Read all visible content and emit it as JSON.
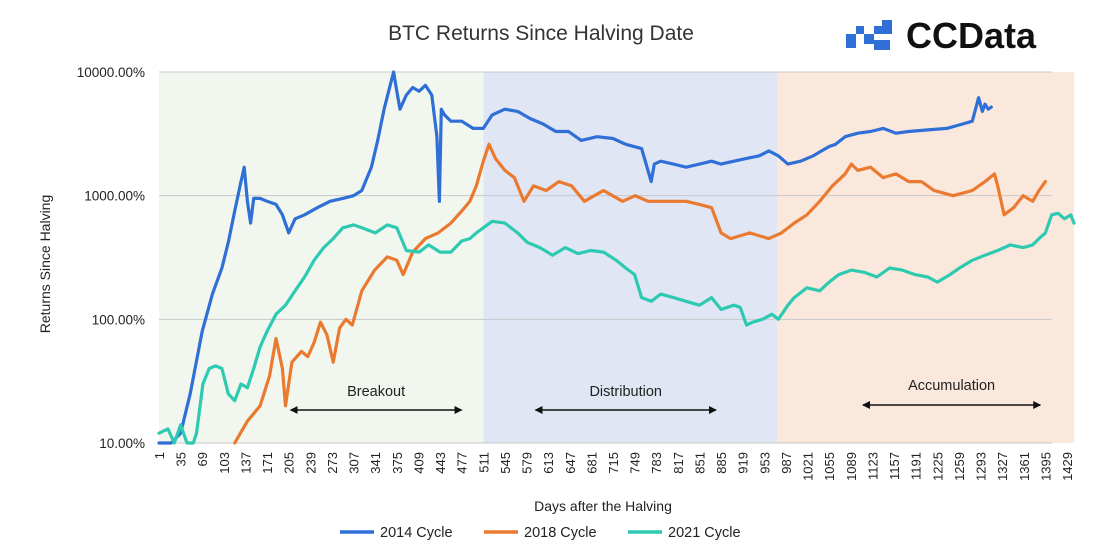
{
  "chart_data": {
    "type": "line",
    "title": "BTC Returns Since Halving Date",
    "xlabel": "Days after the Halving",
    "ylabel": "Returns Since Halving",
    "y_scale": "log",
    "ylim": [
      10,
      10000
    ],
    "xlim": [
      1,
      1440
    ],
    "yticks": [
      10,
      100,
      1000,
      10000
    ],
    "ytick_labels": [
      "10.00%",
      "100.00%",
      "1000.00%",
      "10000.00%"
    ],
    "xticks": [
      1,
      35,
      69,
      103,
      137,
      171,
      205,
      239,
      273,
      307,
      341,
      375,
      409,
      443,
      477,
      511,
      545,
      579,
      613,
      647,
      681,
      715,
      749,
      783,
      817,
      851,
      885,
      919,
      953,
      987,
      1021,
      1055,
      1089,
      1123,
      1157,
      1191,
      1225,
      1259,
      1293,
      1327,
      1361,
      1395,
      1429
    ],
    "grid": "horizontal",
    "legend_position": "bottom",
    "phases": [
      {
        "label": "Breakout",
        "x_start": 1,
        "x_end": 511,
        "color": "#f1f7ee",
        "arrow_from": 205,
        "arrow_to": 480
      },
      {
        "label": "Distribution",
        "x_start": 511,
        "x_end": 973,
        "color": "#e1e6f5",
        "arrow_from": 590,
        "arrow_to": 880
      },
      {
        "label": "Accumulation",
        "x_start": 973,
        "x_end": 1440,
        "color": "#fbe8dc",
        "arrow_from": 1105,
        "arrow_to": 1390
      }
    ],
    "series": [
      {
        "name": "2014 Cycle",
        "color": "#2f6fd6",
        "x": [
          1,
          20,
          35,
          50,
          69,
          85,
          100,
          110,
          120,
          130,
          135,
          140,
          145,
          150,
          160,
          171,
          185,
          195,
          205,
          215,
          230,
          250,
          270,
          290,
          307,
          320,
          335,
          345,
          355,
          365,
          370,
          375,
          380,
          390,
          400,
          410,
          420,
          430,
          438,
          442,
          445,
          450,
          460,
          477,
          495,
          511,
          525,
          545,
          565,
          585,
          605,
          625,
          645,
          665,
          690,
          715,
          735,
          760,
          775,
          780,
          790,
          810,
          830,
          851,
          870,
          885,
          905,
          925,
          945,
          960,
          975,
          990,
          1010,
          1030,
          1055,
          1065,
          1080,
          1100,
          1120,
          1140,
          1160,
          1180,
          1210,
          1240,
          1265,
          1280,
          1290,
          1296,
          1300,
          1305,
          1310
        ],
        "y": [
          10,
          10,
          12,
          25,
          80,
          160,
          260,
          420,
          750,
          1300,
          1700,
          900,
          600,
          950,
          950,
          900,
          850,
          700,
          500,
          650,
          700,
          800,
          900,
          950,
          1000,
          1100,
          1700,
          2800,
          5000,
          8000,
          10000,
          7000,
          5000,
          6500,
          7500,
          7000,
          7800,
          6500,
          3000,
          900,
          5000,
          4500,
          4000,
          4000,
          3500,
          3500,
          4500,
          5000,
          4800,
          4200,
          3800,
          3300,
          3300,
          2800,
          3000,
          2900,
          2600,
          2400,
          1300,
          1800,
          1900,
          1800,
          1700,
          1800,
          1900,
          1800,
          1900,
          2000,
          2100,
          2300,
          2100,
          1800,
          1900,
          2100,
          2500,
          2600,
          3000,
          3200,
          3300,
          3500,
          3200,
          3300,
          3400,
          3500,
          3800,
          4000,
          6200,
          4800,
          5500,
          5000,
          5200
        ]
      },
      {
        "name": "2018 Cycle",
        "color": "#ea7a30",
        "x": [
          120,
          140,
          160,
          175,
          185,
          195,
          200,
          210,
          225,
          235,
          245,
          255,
          265,
          275,
          285,
          295,
          305,
          320,
          340,
          360,
          375,
          385,
          400,
          420,
          440,
          460,
          477,
          490,
          500,
          511,
          520,
          530,
          545,
          560,
          575,
          590,
          610,
          630,
          650,
          670,
          700,
          730,
          750,
          770,
          800,
          830,
          851,
          870,
          885,
          900,
          930,
          960,
          980,
          1000,
          1020,
          1040,
          1060,
          1080,
          1090,
          1100,
          1120,
          1140,
          1160,
          1180,
          1200,
          1220,
          1250,
          1280,
          1300,
          1315,
          1320,
          1330,
          1345,
          1360,
          1375,
          1385,
          1395
        ],
        "y": [
          10,
          15,
          20,
          35,
          70,
          40,
          20,
          45,
          55,
          50,
          65,
          95,
          75,
          45,
          85,
          100,
          90,
          170,
          250,
          320,
          300,
          230,
          350,
          450,
          500,
          600,
          750,
          900,
          1200,
          1900,
          2600,
          2000,
          1600,
          1400,
          900,
          1200,
          1100,
          1300,
          1200,
          900,
          1100,
          900,
          1000,
          900,
          900,
          900,
          850,
          800,
          500,
          450,
          500,
          450,
          500,
          600,
          700,
          900,
          1200,
          1500,
          1800,
          1600,
          1700,
          1400,
          1500,
          1300,
          1300,
          1100,
          1000,
          1100,
          1300,
          1500,
          1200,
          700,
          800,
          1000,
          900,
          1100,
          1300
        ]
      },
      {
        "name": "2021 Cycle",
        "color": "#2ec9b1",
        "x": [
          1,
          15,
          25,
          35,
          45,
          55,
          60,
          70,
          80,
          90,
          100,
          110,
          120,
          130,
          140,
          150,
          160,
          171,
          185,
          200,
          215,
          230,
          245,
          260,
          275,
          290,
          307,
          320,
          341,
          360,
          375,
          390,
          410,
          425,
          443,
          460,
          477,
          490,
          500,
          511,
          525,
          545,
          565,
          580,
          600,
          620,
          640,
          660,
          680,
          700,
          720,
          735,
          749,
          760,
          775,
          790,
          810,
          830,
          851,
          870,
          885,
          905,
          915,
          925,
          935,
          950,
          965,
          975,
          990,
          1000,
          1020,
          1040,
          1055,
          1070,
          1090,
          1110,
          1130,
          1150,
          1170,
          1190,
          1210,
          1225,
          1245,
          1260,
          1280,
          1300,
          1320,
          1340,
          1360,
          1375,
          1385,
          1395,
          1405,
          1415,
          1425,
          1435,
          1440
        ],
        "y": [
          12,
          13,
          10,
          14,
          10,
          10,
          12,
          30,
          40,
          42,
          40,
          25,
          22,
          30,
          28,
          40,
          60,
          80,
          110,
          130,
          170,
          220,
          300,
          380,
          450,
          550,
          580,
          550,
          500,
          580,
          550,
          360,
          350,
          400,
          350,
          350,
          430,
          450,
          500,
          550,
          620,
          600,
          500,
          420,
          380,
          330,
          380,
          340,
          360,
          350,
          300,
          260,
          230,
          150,
          140,
          160,
          150,
          140,
          130,
          150,
          120,
          130,
          125,
          90,
          95,
          100,
          110,
          100,
          130,
          150,
          180,
          170,
          200,
          230,
          250,
          240,
          220,
          260,
          250,
          230,
          220,
          200,
          230,
          260,
          300,
          330,
          360,
          400,
          380,
          400,
          450,
          500,
          700,
          720,
          650,
          700,
          600
        ]
      }
    ]
  },
  "logo": {
    "text": "CCData",
    "color": "#2f6fd6"
  }
}
